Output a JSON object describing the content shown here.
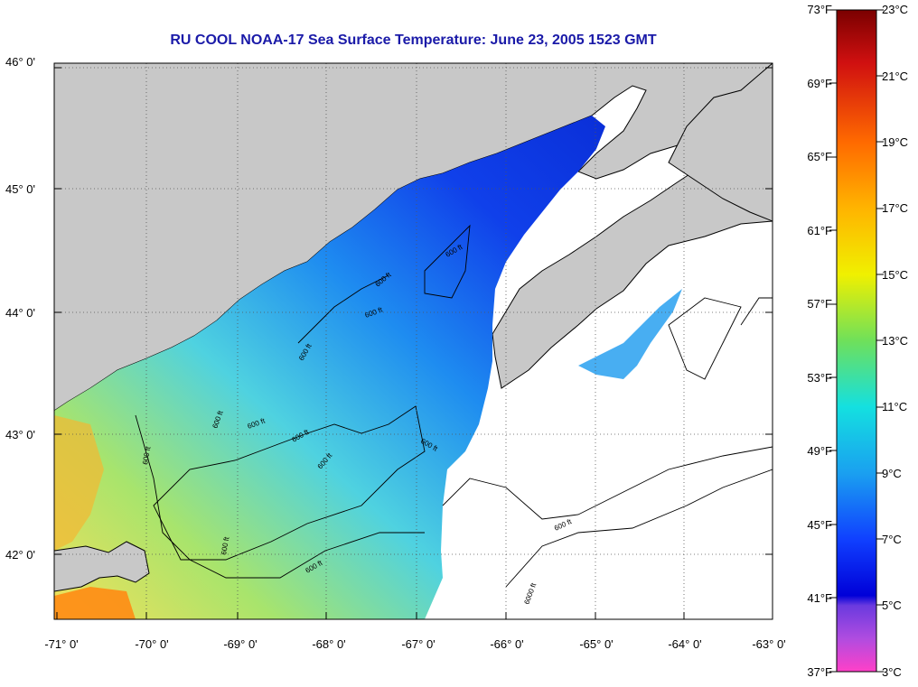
{
  "title": "RU COOL  NOAA-17  Sea Surface Temperature:  June 23, 2005 1523 GMT",
  "map": {
    "latitude_labels": [
      "46° 0'",
      "45° 0'",
      "44° 0'",
      "43° 0'",
      "42° 0'"
    ],
    "longitude_labels": [
      "-71° 0'",
      "-70° 0'",
      "-69° 0'",
      "-68° 0'",
      "-67° 0'",
      "-66° 0'",
      "-65° 0'",
      "-64° 0'",
      "-63° 0'"
    ],
    "contour_labels": [
      "600 ft",
      "600 ft",
      "600 ft",
      "600 ft",
      "600 ft",
      "600 ft",
      "600 ft",
      "600 ft",
      "600 ft",
      "600 ft",
      "600 ft",
      "600 ft",
      "6000 ft",
      "600 ft"
    ],
    "colors": {
      "land": "#c8c8c8",
      "no_data": "#ffffff"
    }
  },
  "colorbar": {
    "fahrenheit_labels": [
      "73°F",
      "69°F",
      "65°F",
      "61°F",
      "57°F",
      "53°F",
      "49°F",
      "45°F",
      "41°F",
      "37°F"
    ],
    "celsius_labels": [
      "23°C",
      "21°C",
      "19°C",
      "17°C",
      "15°C",
      "13°C",
      "11°C",
      "9°C",
      "7°C",
      "5°C",
      "3°C"
    ],
    "range_celsius": [
      3,
      23
    ]
  }
}
